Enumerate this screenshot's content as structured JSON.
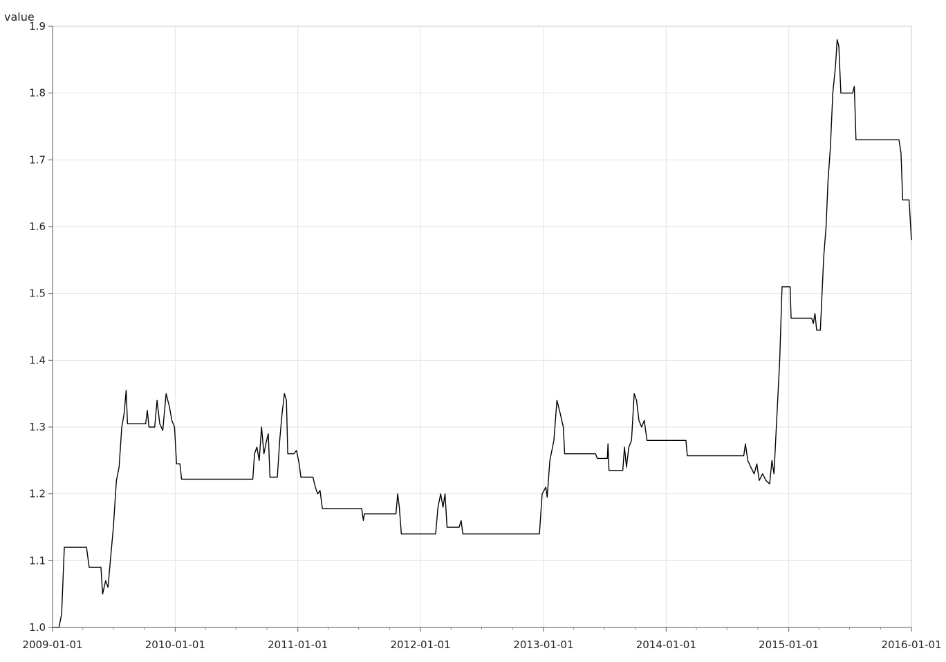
{
  "chart_data": {
    "type": "line",
    "ylabel": "value",
    "xlim": [
      "2009-01-01",
      "2016-01-01"
    ],
    "ylim": [
      1.0,
      1.9
    ],
    "grid": true,
    "x_ticks": [
      "2009-01-01",
      "2010-01-01",
      "2011-01-01",
      "2012-01-01",
      "2013-01-01",
      "2014-01-01",
      "2015-01-01",
      "2016-01-01"
    ],
    "y_ticks": [
      "1.0",
      "1.1",
      "1.2",
      "1.3",
      "1.4",
      "1.5",
      "1.6",
      "1.7",
      "1.8",
      "1.9"
    ],
    "series": [
      {
        "color": "#000000",
        "points": [
          [
            "2009-01-01",
            1.0
          ],
          [
            "2009-01-20",
            1.0
          ],
          [
            "2009-01-28",
            1.02
          ],
          [
            "2009-02-05",
            1.12
          ],
          [
            "2009-04-12",
            1.12
          ],
          [
            "2009-04-20",
            1.09
          ],
          [
            "2009-05-25",
            1.09
          ],
          [
            "2009-05-30",
            1.05
          ],
          [
            "2009-06-08",
            1.07
          ],
          [
            "2009-06-15",
            1.06
          ],
          [
            "2009-06-22",
            1.1
          ],
          [
            "2009-07-01",
            1.15
          ],
          [
            "2009-07-10",
            1.22
          ],
          [
            "2009-07-18",
            1.24
          ],
          [
            "2009-07-26",
            1.3
          ],
          [
            "2009-08-02",
            1.32
          ],
          [
            "2009-08-08",
            1.355
          ],
          [
            "2009-08-12",
            1.305
          ],
          [
            "2009-10-05",
            1.305
          ],
          [
            "2009-10-10",
            1.325
          ],
          [
            "2009-10-15",
            1.3
          ],
          [
            "2009-11-01",
            1.3
          ],
          [
            "2009-11-08",
            1.34
          ],
          [
            "2009-11-16",
            1.305
          ],
          [
            "2009-11-25",
            1.295
          ],
          [
            "2009-12-05",
            1.35
          ],
          [
            "2009-12-15",
            1.33
          ],
          [
            "2009-12-22",
            1.31
          ],
          [
            "2009-12-30",
            1.3
          ],
          [
            "2010-01-05",
            1.245
          ],
          [
            "2010-01-15",
            1.245
          ],
          [
            "2010-01-20",
            1.222
          ],
          [
            "2010-08-20",
            1.222
          ],
          [
            "2010-08-25",
            1.26
          ],
          [
            "2010-09-01",
            1.27
          ],
          [
            "2010-09-08",
            1.25
          ],
          [
            "2010-09-15",
            1.3
          ],
          [
            "2010-09-22",
            1.26
          ],
          [
            "2010-09-30",
            1.28
          ],
          [
            "2010-10-05",
            1.29
          ],
          [
            "2010-10-10",
            1.225
          ],
          [
            "2010-11-01",
            1.225
          ],
          [
            "2010-11-08",
            1.28
          ],
          [
            "2010-11-15",
            1.32
          ],
          [
            "2010-11-22",
            1.35
          ],
          [
            "2010-11-28",
            1.34
          ],
          [
            "2010-12-02",
            1.26
          ],
          [
            "2010-12-20",
            1.26
          ],
          [
            "2010-12-28",
            1.265
          ],
          [
            "2011-01-05",
            1.245
          ],
          [
            "2011-01-10",
            1.225
          ],
          [
            "2011-02-15",
            1.225
          ],
          [
            "2011-02-22",
            1.21
          ],
          [
            "2011-03-01",
            1.2
          ],
          [
            "2011-03-08",
            1.205
          ],
          [
            "2011-03-15",
            1.178
          ],
          [
            "2011-07-10",
            1.178
          ],
          [
            "2011-07-15",
            1.16
          ],
          [
            "2011-07-18",
            1.17
          ],
          [
            "2011-10-20",
            1.17
          ],
          [
            "2011-10-25",
            1.2
          ],
          [
            "2011-10-30",
            1.18
          ],
          [
            "2011-11-05",
            1.14
          ],
          [
            "2012-02-15",
            1.14
          ],
          [
            "2012-02-22",
            1.18
          ],
          [
            "2012-03-01",
            1.2
          ],
          [
            "2012-03-08",
            1.18
          ],
          [
            "2012-03-14",
            1.2
          ],
          [
            "2012-03-20",
            1.15
          ],
          [
            "2012-04-25",
            1.15
          ],
          [
            "2012-05-01",
            1.16
          ],
          [
            "2012-05-06",
            1.14
          ],
          [
            "2012-12-20",
            1.14
          ],
          [
            "2012-12-28",
            1.2
          ],
          [
            "2013-01-08",
            1.21
          ],
          [
            "2013-01-12",
            1.195
          ],
          [
            "2013-01-20",
            1.25
          ],
          [
            "2013-02-01",
            1.28
          ],
          [
            "2013-02-10",
            1.34
          ],
          [
            "2013-02-20",
            1.32
          ],
          [
            "2013-03-01",
            1.3
          ],
          [
            "2013-03-05",
            1.26
          ],
          [
            "2013-06-05",
            1.26
          ],
          [
            "2013-06-10",
            1.253
          ],
          [
            "2013-07-10",
            1.253
          ],
          [
            "2013-07-12",
            1.275
          ],
          [
            "2013-07-15",
            1.235
          ],
          [
            "2013-08-25",
            1.235
          ],
          [
            "2013-08-30",
            1.27
          ],
          [
            "2013-09-05",
            1.24
          ],
          [
            "2013-09-12",
            1.27
          ],
          [
            "2013-09-20",
            1.28
          ],
          [
            "2013-09-28",
            1.35
          ],
          [
            "2013-10-05",
            1.34
          ],
          [
            "2013-10-12",
            1.31
          ],
          [
            "2013-10-20",
            1.3
          ],
          [
            "2013-10-28",
            1.31
          ],
          [
            "2013-11-05",
            1.28
          ],
          [
            "2014-03-01",
            1.28
          ],
          [
            "2014-03-05",
            1.257
          ],
          [
            "2014-08-20",
            1.257
          ],
          [
            "2014-08-25",
            1.275
          ],
          [
            "2014-09-01",
            1.25
          ],
          [
            "2014-09-10",
            1.24
          ],
          [
            "2014-09-20",
            1.23
          ],
          [
            "2014-09-28",
            1.245
          ],
          [
            "2014-10-05",
            1.22
          ],
          [
            "2014-10-15",
            1.23
          ],
          [
            "2014-10-25",
            1.22
          ],
          [
            "2014-11-05",
            1.215
          ],
          [
            "2014-11-12",
            1.25
          ],
          [
            "2014-11-18",
            1.23
          ],
          [
            "2014-11-25",
            1.3
          ],
          [
            "2014-12-05",
            1.4
          ],
          [
            "2014-12-12",
            1.51
          ],
          [
            "2015-01-05",
            1.51
          ],
          [
            "2015-01-08",
            1.463
          ],
          [
            "2015-03-10",
            1.463
          ],
          [
            "2015-03-15",
            1.455
          ],
          [
            "2015-03-20",
            1.47
          ],
          [
            "2015-03-25",
            1.445
          ],
          [
            "2015-04-05",
            1.445
          ],
          [
            "2015-04-10",
            1.5
          ],
          [
            "2015-04-15",
            1.555
          ],
          [
            "2015-04-22",
            1.6
          ],
          [
            "2015-04-28",
            1.67
          ],
          [
            "2015-05-05",
            1.72
          ],
          [
            "2015-05-12",
            1.8
          ],
          [
            "2015-05-20",
            1.84
          ],
          [
            "2015-05-25",
            1.88
          ],
          [
            "2015-05-30",
            1.87
          ],
          [
            "2015-06-05",
            1.8
          ],
          [
            "2015-07-10",
            1.8
          ],
          [
            "2015-07-15",
            1.81
          ],
          [
            "2015-07-20",
            1.73
          ],
          [
            "2015-11-25",
            1.73
          ],
          [
            "2015-12-01",
            1.71
          ],
          [
            "2015-12-06",
            1.64
          ],
          [
            "2015-12-25",
            1.64
          ],
          [
            "2016-01-01",
            1.58
          ]
        ]
      }
    ]
  }
}
